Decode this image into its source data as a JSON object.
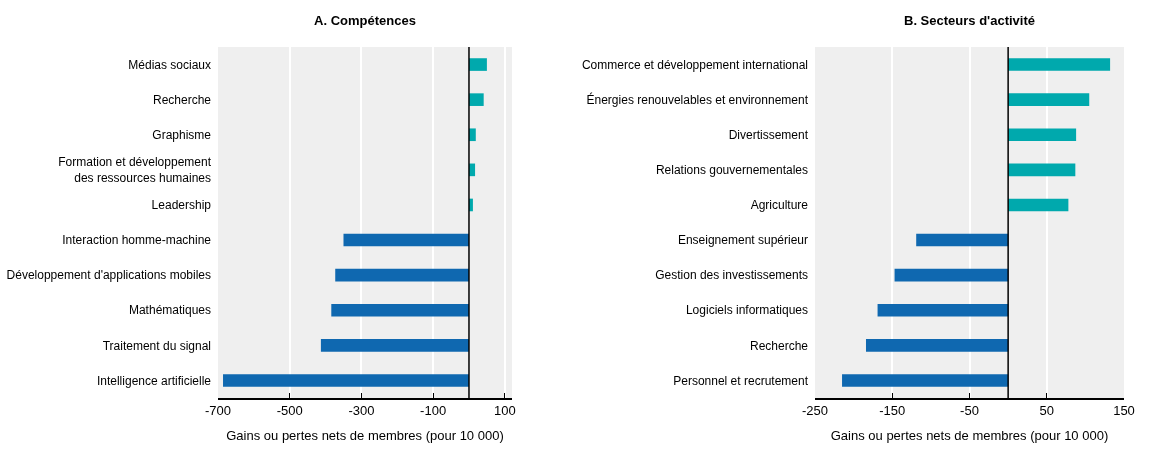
{
  "chart_data": [
    {
      "type": "bar",
      "orientation": "horizontal",
      "title": "A. Compétences",
      "xlabel": "Gains ou pertes nets de membres (pour 10 000)",
      "categories": [
        "Médias sociaux",
        "Recherche",
        "Graphisme",
        "Formation et développement des ressources humaines",
        "Leadership",
        "Interaction homme-machine",
        "Développement d'applications mobiles",
        "Mathématiques",
        "Traitement du signal",
        "Intelligence artificielle"
      ],
      "values": [
        50,
        41,
        19,
        17,
        11,
        -350,
        -373,
        -384,
        -413,
        -686
      ],
      "colors": [
        "#00a9ad",
        "#00a9ad",
        "#00a9ad",
        "#00a9ad",
        "#00a9ad",
        "#0f68b0",
        "#0f68b0",
        "#0f68b0",
        "#0f68b0",
        "#0f68b0"
      ],
      "xlim": [
        -700,
        120
      ],
      "xticks": [
        -700,
        -500,
        -300,
        -100,
        100
      ],
      "grid": "x"
    },
    {
      "type": "bar",
      "orientation": "horizontal",
      "title": "B. Secteurs d'activité",
      "xlabel": "Gains ou pertes nets de membres (pour 10 000)",
      "categories": [
        "Commerce et développement international",
        "Énergies renouvelables et environnement",
        "Divertissement",
        "Relations gouvernementales",
        "Agriculture",
        "Enseignement supérieur",
        "Gestion des investissements",
        "Logiciels informatiques",
        "Recherche",
        "Personnel et recrutement"
      ],
      "values": [
        132,
        105,
        88,
        87,
        78,
        -119,
        -147,
        -169,
        -184,
        -215
      ],
      "colors": [
        "#00a9ad",
        "#00a9ad",
        "#00a9ad",
        "#00a9ad",
        "#00a9ad",
        "#0f68b0",
        "#0f68b0",
        "#0f68b0",
        "#0f68b0",
        "#0f68b0"
      ],
      "xlim": [
        -250,
        150
      ],
      "xticks": [
        -250,
        -150,
        -50,
        50,
        150
      ],
      "grid": "x"
    }
  ]
}
